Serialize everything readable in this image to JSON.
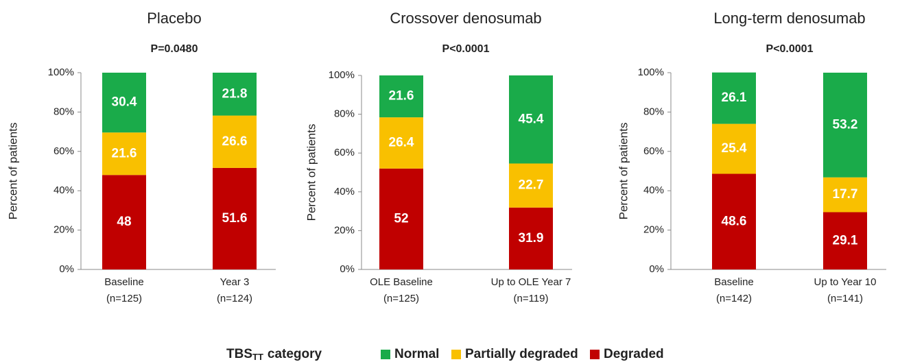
{
  "chart_data": [
    {
      "type": "bar",
      "stacked": true,
      "title": "Placebo",
      "subtitle": "P=0.0480",
      "ylabel": "Percent of patients",
      "categories": [
        "Baseline",
        "Year 3"
      ],
      "category_n": [
        "(n=125)",
        "(n=124)"
      ],
      "series": [
        {
          "name": "Normal",
          "color": "#1aab4a",
          "values": [
            30.4,
            21.8
          ]
        },
        {
          "name": "Partially degraded",
          "color": "#f9c000",
          "values": [
            21.6,
            26.6
          ]
        },
        {
          "name": "Degraded",
          "color": "#c00000",
          "values": [
            48.0,
            51.6
          ]
        }
      ],
      "ylim": [
        0,
        100
      ],
      "yticks": [
        {
          "value": 0,
          "label": "0%"
        },
        {
          "value": 20,
          "label": "20%"
        },
        {
          "value": 40,
          "label": "40%"
        },
        {
          "value": 60,
          "label": "60%"
        },
        {
          "value": 80,
          "label": "80%"
        },
        {
          "value": 100,
          "label": "100%"
        }
      ]
    },
    {
      "type": "bar",
      "stacked": true,
      "title": "Crossover denosumab",
      "subtitle": "P<0.0001",
      "ylabel": "Percent of patients",
      "categories": [
        "OLE Baseline",
        "Up to OLE Year 7"
      ],
      "category_n": [
        "(n=125)",
        "(n=119)"
      ],
      "series": [
        {
          "name": "Normal",
          "color": "#1aab4a",
          "values": [
            21.6,
            45.4
          ]
        },
        {
          "name": "Partially degraded",
          "color": "#f9c000",
          "values": [
            26.4,
            22.7
          ]
        },
        {
          "name": "Degraded",
          "color": "#c00000",
          "values": [
            52.0,
            31.9
          ]
        }
      ],
      "ylim": [
        0,
        100
      ],
      "yticks": [
        {
          "value": 0,
          "label": "0%"
        },
        {
          "value": 20,
          "label": "20%"
        },
        {
          "value": 40,
          "label": "40%"
        },
        {
          "value": 60,
          "label": "60%"
        },
        {
          "value": 80,
          "label": "80%"
        },
        {
          "value": 100,
          "label": "100%"
        }
      ]
    },
    {
      "type": "bar",
      "stacked": true,
      "title": "Long-term denosumab",
      "subtitle": "P<0.0001",
      "ylabel": "Percent of patients",
      "categories": [
        "Baseline",
        "Up to Year 10"
      ],
      "category_n": [
        "(n=142)",
        "(n=141)"
      ],
      "series": [
        {
          "name": "Normal",
          "color": "#1aab4a",
          "values": [
            26.1,
            53.2
          ]
        },
        {
          "name": "Partially degraded",
          "color": "#f9c000",
          "values": [
            25.4,
            17.7
          ]
        },
        {
          "name": "Degraded",
          "color": "#c00000",
          "values": [
            48.6,
            29.1
          ]
        }
      ],
      "ylim": [
        0,
        100
      ],
      "yticks": [
        {
          "value": 0,
          "label": "0%"
        },
        {
          "value": 20,
          "label": "20%"
        },
        {
          "value": 40,
          "label": "40%"
        },
        {
          "value": 60,
          "label": "60%"
        },
        {
          "value": 80,
          "label": "80%"
        },
        {
          "value": 100,
          "label": "100%"
        }
      ]
    }
  ],
  "legend": {
    "title": "TBS",
    "title_sub": "TT",
    "title_rest": "category"
  }
}
